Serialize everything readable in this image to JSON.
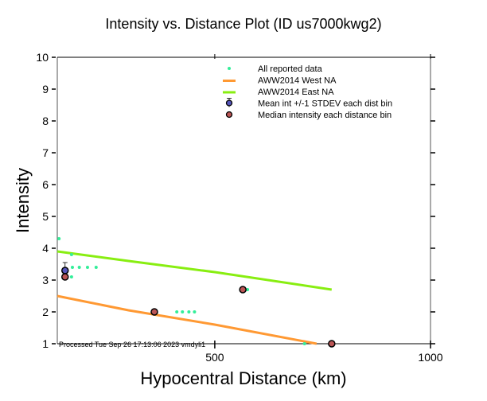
{
  "chart_data": {
    "type": "scatter",
    "title": "Intensity vs. Distance Plot (ID us7000kwg2)",
    "xlabel": "Hypocentral Distance (km)",
    "ylabel": "Intensity",
    "xlim": [
      135,
      1000
    ],
    "ylim": [
      1,
      10
    ],
    "xticks": [
      500,
      1000
    ],
    "xtick_labels": [
      "500",
      "1000"
    ],
    "yticks": [
      1,
      2,
      3,
      4,
      5,
      6,
      7,
      8,
      9,
      10
    ],
    "ytick_labels": [
      "1",
      "2",
      "3",
      "4",
      "5",
      "6",
      "7",
      "8",
      "9",
      "10"
    ],
    "grid": false,
    "legend_position": "top-right",
    "annotation": "Processed Tue Sep 26 17:13:06 2023 vmdyli1",
    "series": [
      {
        "name": "All reported data",
        "kind": "points",
        "color": "#33ee99",
        "x": [
          139,
          168,
          170,
          186,
          205,
          225,
          168,
          412,
          425,
          440,
          453,
          576,
          708
        ],
        "y": [
          4.3,
          3.8,
          3.4,
          3.4,
          3.4,
          3.4,
          3.1,
          2.0,
          2.0,
          2.0,
          2.0,
          2.7,
          1.0
        ]
      },
      {
        "name": "AWW2014 West NA",
        "kind": "line",
        "color": "#ff9933",
        "x": [
          135,
          300,
          500,
          736
        ],
        "y": [
          2.5,
          2.05,
          1.6,
          1.0
        ]
      },
      {
        "name": "AWW2014 East NA",
        "kind": "line",
        "color": "#88ee11",
        "x": [
          135,
          300,
          500,
          771
        ],
        "y": [
          3.9,
          3.6,
          3.25,
          2.7
        ]
      },
      {
        "name": "Mean int +/-1 STDEV each dist bin",
        "kind": "errorpoints",
        "color": "#5555bb",
        "x": [
          153
        ],
        "y": [
          3.3
        ],
        "err": [
          0.25
        ]
      },
      {
        "name": "Median intensity each distance bin",
        "kind": "points",
        "color": "#bb5555",
        "x": [
          153,
          360,
          565,
          771
        ],
        "y": [
          3.1,
          2.0,
          2.7,
          1.0
        ]
      }
    ]
  }
}
